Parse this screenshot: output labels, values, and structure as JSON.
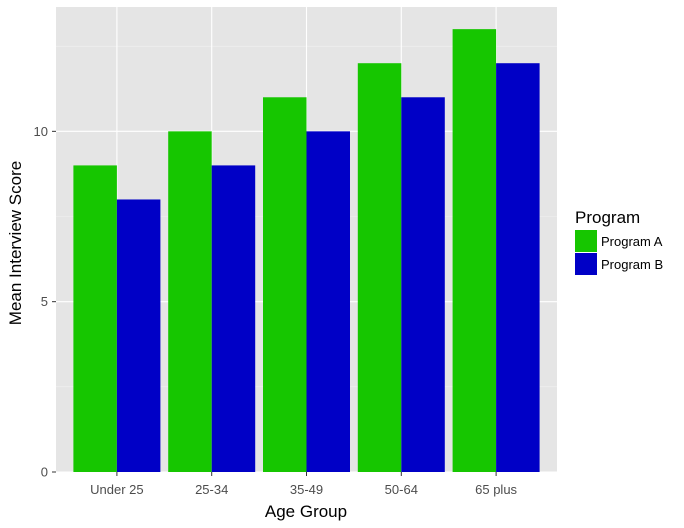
{
  "chart_data": {
    "type": "bar",
    "categories": [
      "Under 25",
      "25-34",
      "35-49",
      "50-64",
      "65 plus"
    ],
    "series": [
      {
        "name": "Program A",
        "values": [
          9,
          10,
          11,
          12,
          13
        ],
        "color": "#16c600"
      },
      {
        "name": "Program B",
        "values": [
          8,
          9,
          10,
          11,
          12
        ],
        "color": "#0000c6"
      }
    ],
    "xlabel": "Age Group",
    "ylabel": "Mean Interview Score",
    "ylim": [
      0,
      13.65
    ],
    "yticks": [
      0,
      5,
      10
    ],
    "grid": true,
    "legend": {
      "title": "Program",
      "position": "right"
    },
    "panel_background": "#e5e5e5",
    "grid_color": "#ffffff"
  }
}
